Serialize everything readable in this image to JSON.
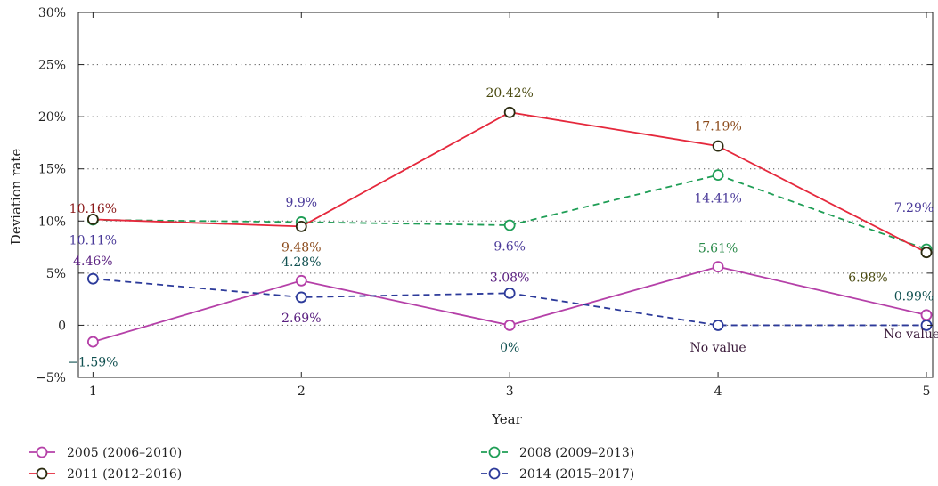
{
  "chart_data": {
    "type": "line",
    "title": "",
    "xlabel": "Year",
    "ylabel": "Deviation rate",
    "x": [
      1,
      2,
      3,
      4,
      5
    ],
    "xlim": [
      0.93,
      5.03
    ],
    "ylim": [
      -5,
      30
    ],
    "yticks": [
      -5,
      0,
      5,
      10,
      15,
      20,
      25,
      30
    ],
    "ytick_labels": [
      "−5%",
      "0",
      "5%",
      "10%",
      "15%",
      "20%",
      "25%",
      "30%"
    ],
    "grid": "horizontal-dotted",
    "legend_position": "bottom",
    "series": [
      {
        "name": "2005 (2006–2010)",
        "color": "#b540a8",
        "dash": "solid",
        "values": [
          -1.59,
          4.28,
          0,
          5.61,
          0.99
        ]
      },
      {
        "name": "2008 (2009–2013)",
        "color": "#1f9e56",
        "dash": "dashed",
        "values": [
          10.11,
          9.9,
          9.6,
          14.41,
          7.29
        ]
      },
      {
        "name": "2011 (2012–2016)",
        "color": "#e5283c",
        "dash": "solid",
        "marker_edge": "#2b2b10",
        "values": [
          10.16,
          9.48,
          20.42,
          17.19,
          6.98
        ]
      },
      {
        "name": "2014 (2015–2017)",
        "color": "#2c3a9a",
        "dash": "dashed",
        "values": [
          4.46,
          2.69,
          3.08,
          0,
          0
        ]
      }
    ],
    "annotations": [
      {
        "text": "10.16%",
        "x": 1,
        "y": 11.2,
        "color": "#8b1a1a"
      },
      {
        "text": "10.11%",
        "x": 1,
        "y": 8.2,
        "color": "#4a3a99"
      },
      {
        "text": "4.46%",
        "x": 1,
        "y": 6.2,
        "color": "#5a2080"
      },
      {
        "text": "−1.59%",
        "x": 1,
        "y": -3.5,
        "color": "#105050"
      },
      {
        "text": "9.9%",
        "x": 2,
        "y": 11.8,
        "color": "#4a3a99"
      },
      {
        "text": "9.48%",
        "x": 2,
        "y": 7.5,
        "color": "#8b4a1a"
      },
      {
        "text": "4.28%",
        "x": 2,
        "y": 6.1,
        "color": "#105050"
      },
      {
        "text": "2.69%",
        "x": 2,
        "y": 0.7,
        "color": "#5a2080"
      },
      {
        "text": "20.42%",
        "x": 3,
        "y": 22.3,
        "color": "#4a4a10"
      },
      {
        "text": "9.6%",
        "x": 3,
        "y": 7.6,
        "color": "#4a3a99"
      },
      {
        "text": "3.08%",
        "x": 3,
        "y": 4.6,
        "color": "#5a2080"
      },
      {
        "text": "0%",
        "x": 3,
        "y": -2.1,
        "color": "#105050"
      },
      {
        "text": "17.19%",
        "x": 4,
        "y": 19.1,
        "color": "#8b4a1a"
      },
      {
        "text": "14.41%",
        "x": 4,
        "y": 12.2,
        "color": "#4a3a99"
      },
      {
        "text": "5.61%",
        "x": 4,
        "y": 7.4,
        "color": "#2a8a4a"
      },
      {
        "text": "No value",
        "x": 4,
        "y": -2.1,
        "color": "#3a1a3a"
      },
      {
        "text": "7.29%",
        "x": 4.94,
        "y": 11.3,
        "color": "#4a3a99"
      },
      {
        "text": "6.98%",
        "x": 4.72,
        "y": 4.6,
        "color": "#4a4a10"
      },
      {
        "text": "0.99%",
        "x": 4.94,
        "y": 2.8,
        "color": "#105050"
      },
      {
        "text": "No value",
        "x": 4.93,
        "y": -0.8,
        "color": "#3a1a3a"
      }
    ]
  }
}
